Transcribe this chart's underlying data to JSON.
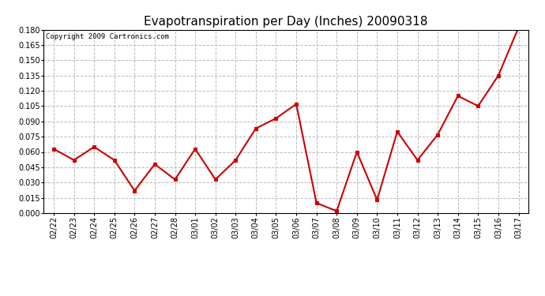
{
  "title": "Evapotranspiration per Day (Inches) 20090318",
  "copyright_text": "Copyright 2009 Cartronics.com",
  "x_labels": [
    "02/22",
    "02/23",
    "02/24",
    "02/25",
    "02/26",
    "02/27",
    "02/28",
    "03/01",
    "03/02",
    "03/03",
    "03/04",
    "03/05",
    "03/06",
    "03/07",
    "03/08",
    "03/09",
    "03/10",
    "03/11",
    "03/12",
    "03/13",
    "03/14",
    "03/15",
    "03/16",
    "03/17"
  ],
  "y_values": [
    0.063,
    0.052,
    0.065,
    0.052,
    0.022,
    0.048,
    0.033,
    0.063,
    0.033,
    0.052,
    0.083,
    0.093,
    0.107,
    0.01,
    0.002,
    0.06,
    0.013,
    0.08,
    0.052,
    0.077,
    0.115,
    0.105,
    0.135,
    0.182
  ],
  "line_color": "#cc0000",
  "marker_color": "#cc0000",
  "marker_style": "s",
  "marker_size": 3,
  "line_width": 1.5,
  "ylim": [
    0.0,
    0.18
  ],
  "yticks": [
    0.0,
    0.015,
    0.03,
    0.045,
    0.06,
    0.075,
    0.09,
    0.105,
    0.12,
    0.135,
    0.15,
    0.165,
    0.18
  ],
  "background_color": "#ffffff",
  "plot_bg_color": "#ffffff",
  "grid_color": "#bbbbbb",
  "grid_style": "--",
  "title_fontsize": 11,
  "copyright_fontsize": 6.5,
  "tick_fontsize": 7,
  "ytick_fontsize": 7
}
